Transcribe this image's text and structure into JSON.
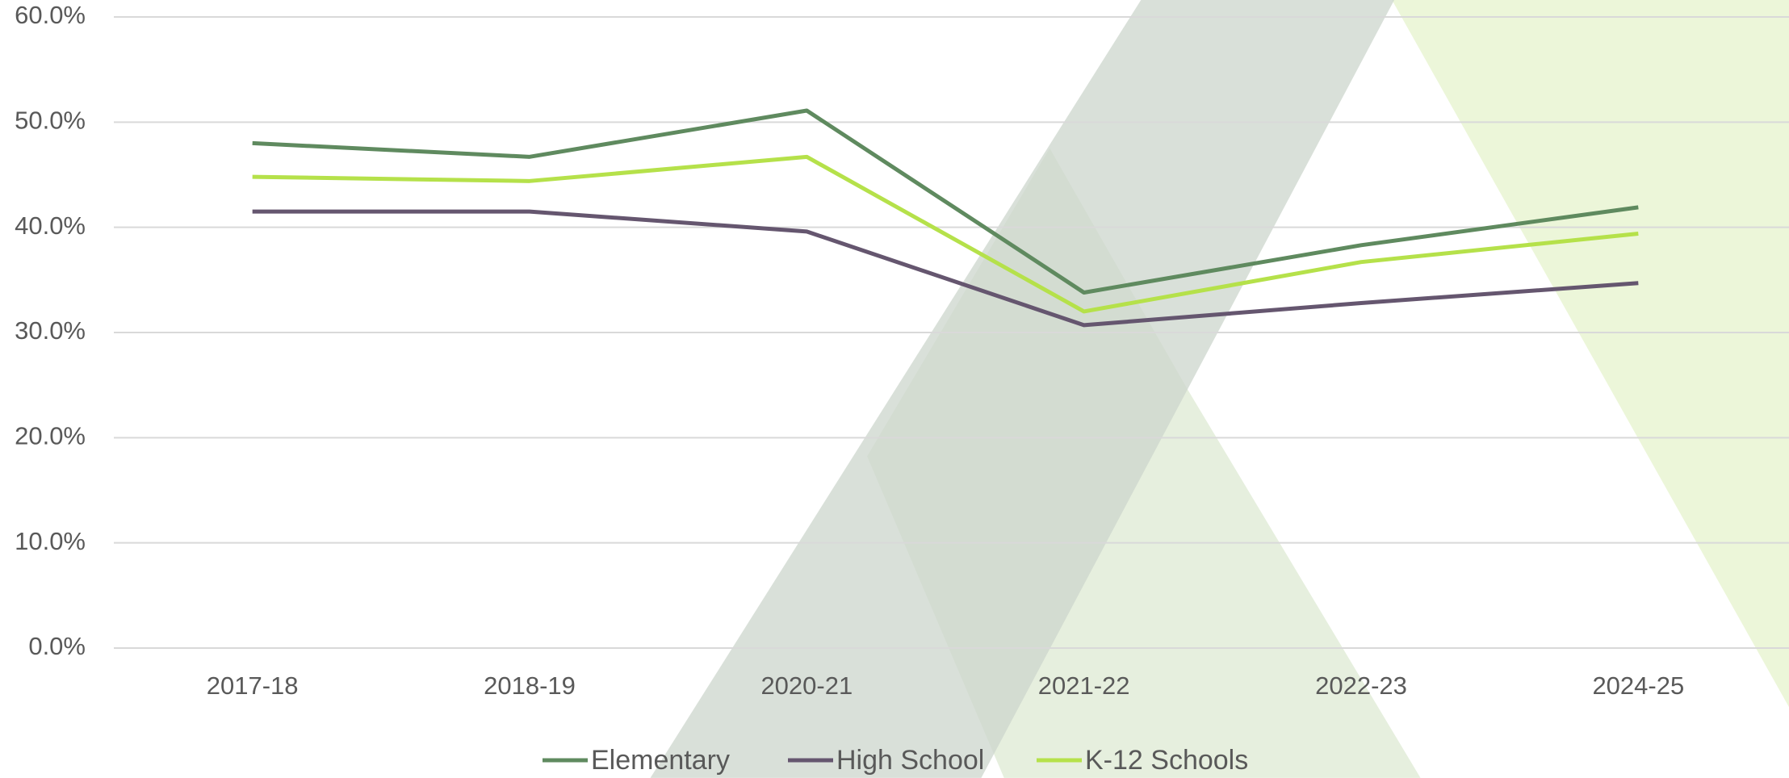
{
  "chart_data": {
    "type": "line",
    "categories": [
      "2017-18",
      "2018-19",
      "2020-21",
      "2021-22",
      "2022-23",
      "2024-25"
    ],
    "series": [
      {
        "name": "Elementary",
        "color": "#5f8a5f",
        "values": [
          48.0,
          46.7,
          51.1,
          33.8,
          38.3,
          41.9
        ]
      },
      {
        "name": "High School",
        "color": "#65566f",
        "values": [
          41.5,
          41.5,
          39.6,
          30.7,
          32.8,
          34.7
        ]
      },
      {
        "name": "K-12 Schools",
        "color": "#b5e14a",
        "values": [
          44.8,
          44.4,
          46.7,
          32.0,
          36.7,
          39.4
        ]
      }
    ],
    "ylim": [
      0,
      60
    ],
    "yticks": [
      {
        "value": 0,
        "label": "0.0%"
      },
      {
        "value": 10,
        "label": "10.0%"
      },
      {
        "value": 20,
        "label": "20.0%"
      },
      {
        "value": 30,
        "label": "30.0%"
      },
      {
        "value": 40,
        "label": "40.0%"
      },
      {
        "value": 50,
        "label": "50.0%"
      },
      {
        "value": 60,
        "label": "60.0%"
      }
    ],
    "grid": true,
    "legend": "bottom"
  }
}
